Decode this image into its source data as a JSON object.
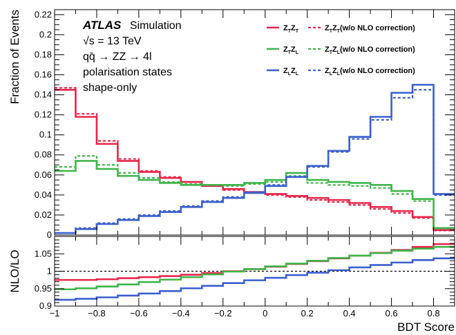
{
  "chart_data": [
    {
      "type": "line",
      "subtype": "step-histogram",
      "title": "",
      "xlabel": "BDT Score",
      "ylabel": "Fraction of Events",
      "xlim": [
        -1,
        0.9
      ],
      "ylim": [
        0,
        0.225
      ],
      "bin_edges": [
        -1,
        -0.9,
        -0.8,
        -0.7,
        -0.6,
        -0.5,
        -0.4,
        -0.3,
        -0.2,
        -0.1,
        0,
        0.1,
        0.2,
        0.3,
        0.4,
        0.5,
        0.6,
        0.7,
        0.8,
        0.9
      ],
      "xticks": [
        "−1",
        "−0.8",
        "−0.6",
        "−0.4",
        "−0.2",
        "0",
        "0.2",
        "0.4",
        "0.6",
        "0.8"
      ],
      "xtick_values": [
        -1,
        -0.8,
        -0.6,
        -0.4,
        -0.2,
        0,
        0.2,
        0.4,
        0.6,
        0.8
      ],
      "yticks": [
        "0",
        "0.02",
        "0.04",
        "0.06",
        "0.08",
        "0.1",
        "0.12",
        "0.14",
        "0.16",
        "0.18",
        "0.2",
        "0.22"
      ],
      "ytick_values": [
        0,
        0.02,
        0.04,
        0.06,
        0.08,
        0.1,
        0.12,
        0.14,
        0.16,
        0.18,
        0.2,
        0.22
      ],
      "grid": false,
      "legend_position": "top-right",
      "annotations": {
        "atlas": "ATLAS",
        "simulation": "Simulation",
        "energy": "√s = 13 TeV",
        "process": "qq̄ → ZZ → 4l",
        "line3": "polarisation states",
        "line4": "shape-only"
      },
      "series": [
        {
          "name": "ZTZT",
          "legend_main": "Z",
          "legend_sub1": "T",
          "legend_sub2": "T",
          "color": "#e8254a",
          "style": "solid",
          "values": [
            0.145,
            0.118,
            0.091,
            0.074,
            0.063,
            0.057,
            0.053,
            0.049,
            0.046,
            0.043,
            0.041,
            0.039,
            0.037,
            0.035,
            0.032,
            0.028,
            0.024,
            0.018,
            0.005
          ]
        },
        {
          "name": "ZTZT (w/o NLO correction)",
          "legend_main": "Z",
          "legend_sub1": "T",
          "legend_sub2": "T",
          "legend_note": "(w/o NLO correction)",
          "color": "#e8254a",
          "style": "dashed",
          "values": [
            0.147,
            0.121,
            0.094,
            0.076,
            0.064,
            0.058,
            0.053,
            0.049,
            0.045,
            0.042,
            0.04,
            0.038,
            0.035,
            0.033,
            0.03,
            0.026,
            0.022,
            0.017,
            0.0045
          ]
        },
        {
          "name": "ZTZL",
          "legend_main": "Z",
          "legend_sub1": "T",
          "legend_sub2": "L",
          "color": "#3db54a",
          "style": "solid",
          "values": [
            0.064,
            0.074,
            0.066,
            0.059,
            0.055,
            0.052,
            0.05,
            0.05,
            0.05,
            0.052,
            0.055,
            0.062,
            0.055,
            0.053,
            0.052,
            0.05,
            0.044,
            0.036,
            0.007
          ]
        },
        {
          "name": "ZTZL (w/o NLO correction)",
          "legend_main": "Z",
          "legend_sub1": "T",
          "legend_sub2": "L",
          "legend_note": "(w/o NLO correction)",
          "color": "#3db54a",
          "style": "dashed",
          "values": [
            0.068,
            0.079,
            0.07,
            0.062,
            0.057,
            0.053,
            0.051,
            0.05,
            0.049,
            0.051,
            0.053,
            0.059,
            0.052,
            0.05,
            0.049,
            0.047,
            0.041,
            0.034,
            0.0065
          ]
        },
        {
          "name": "ZLZL",
          "legend_main": "Z",
          "legend_sub1": "L",
          "legend_sub2": "L",
          "color": "#3a5fcd",
          "style": "solid",
          "values": [
            0.002,
            0.006,
            0.011,
            0.015,
            0.019,
            0.023,
            0.028,
            0.033,
            0.037,
            0.042,
            0.049,
            0.058,
            0.069,
            0.084,
            0.098,
            0.118,
            0.142,
            0.15,
            0.041
          ]
        },
        {
          "name": "ZLZL (w/o NLO correction)",
          "legend_main": "Z",
          "legend_sub1": "L",
          "legend_sub2": "L",
          "legend_note": "(w/o NLO correction)",
          "color": "#3a5fcd",
          "style": "dashed",
          "values": [
            0.002,
            0.007,
            0.012,
            0.016,
            0.02,
            0.024,
            0.029,
            0.034,
            0.038,
            0.043,
            0.05,
            0.058,
            0.068,
            0.083,
            0.096,
            0.115,
            0.137,
            0.145,
            0.04
          ]
        }
      ]
    },
    {
      "type": "line",
      "subtype": "step-ratio",
      "title": "",
      "xlabel": "BDT Score",
      "ylabel": "NLO/LO",
      "xlim": [
        -1,
        0.9
      ],
      "ylim": [
        0.9,
        1.1
      ],
      "reference_line": 1,
      "yticks": [
        "0.9",
        "0.95",
        "1",
        "1.05"
      ],
      "ytick_values": [
        0.9,
        0.95,
        1,
        1.05
      ],
      "xticks": [
        "−1",
        "−0.8",
        "−0.6",
        "−0.4",
        "−0.2",
        "0",
        "0.2",
        "0.4",
        "0.6",
        "0.8"
      ],
      "xtick_values": [
        -1,
        -0.8,
        -0.6,
        -0.4,
        -0.2,
        0,
        0.2,
        0.4,
        0.6,
        0.8
      ],
      "series": [
        {
          "name": "ZTZT",
          "color": "#e8254a",
          "values": [
            0.975,
            0.975,
            0.977,
            0.98,
            0.983,
            0.986,
            0.99,
            0.995,
            1.0,
            1.006,
            1.013,
            1.021,
            1.029,
            1.037,
            1.045,
            1.053,
            1.061,
            1.07,
            1.078
          ]
        },
        {
          "name": "ZTZL",
          "color": "#3db54a",
          "values": [
            0.948,
            0.951,
            0.956,
            0.962,
            0.969,
            0.976,
            0.983,
            0.991,
            0.999,
            1.006,
            1.014,
            1.022,
            1.03,
            1.038,
            1.045,
            1.052,
            1.059,
            1.065,
            1.07
          ]
        },
        {
          "name": "ZLZL",
          "color": "#3a5fcd",
          "values": [
            0.918,
            0.921,
            0.925,
            0.93,
            0.936,
            0.943,
            0.951,
            0.958,
            0.966,
            0.974,
            0.981,
            0.989,
            0.996,
            1.003,
            1.011,
            1.018,
            1.025,
            1.032,
            1.037
          ]
        }
      ]
    }
  ]
}
